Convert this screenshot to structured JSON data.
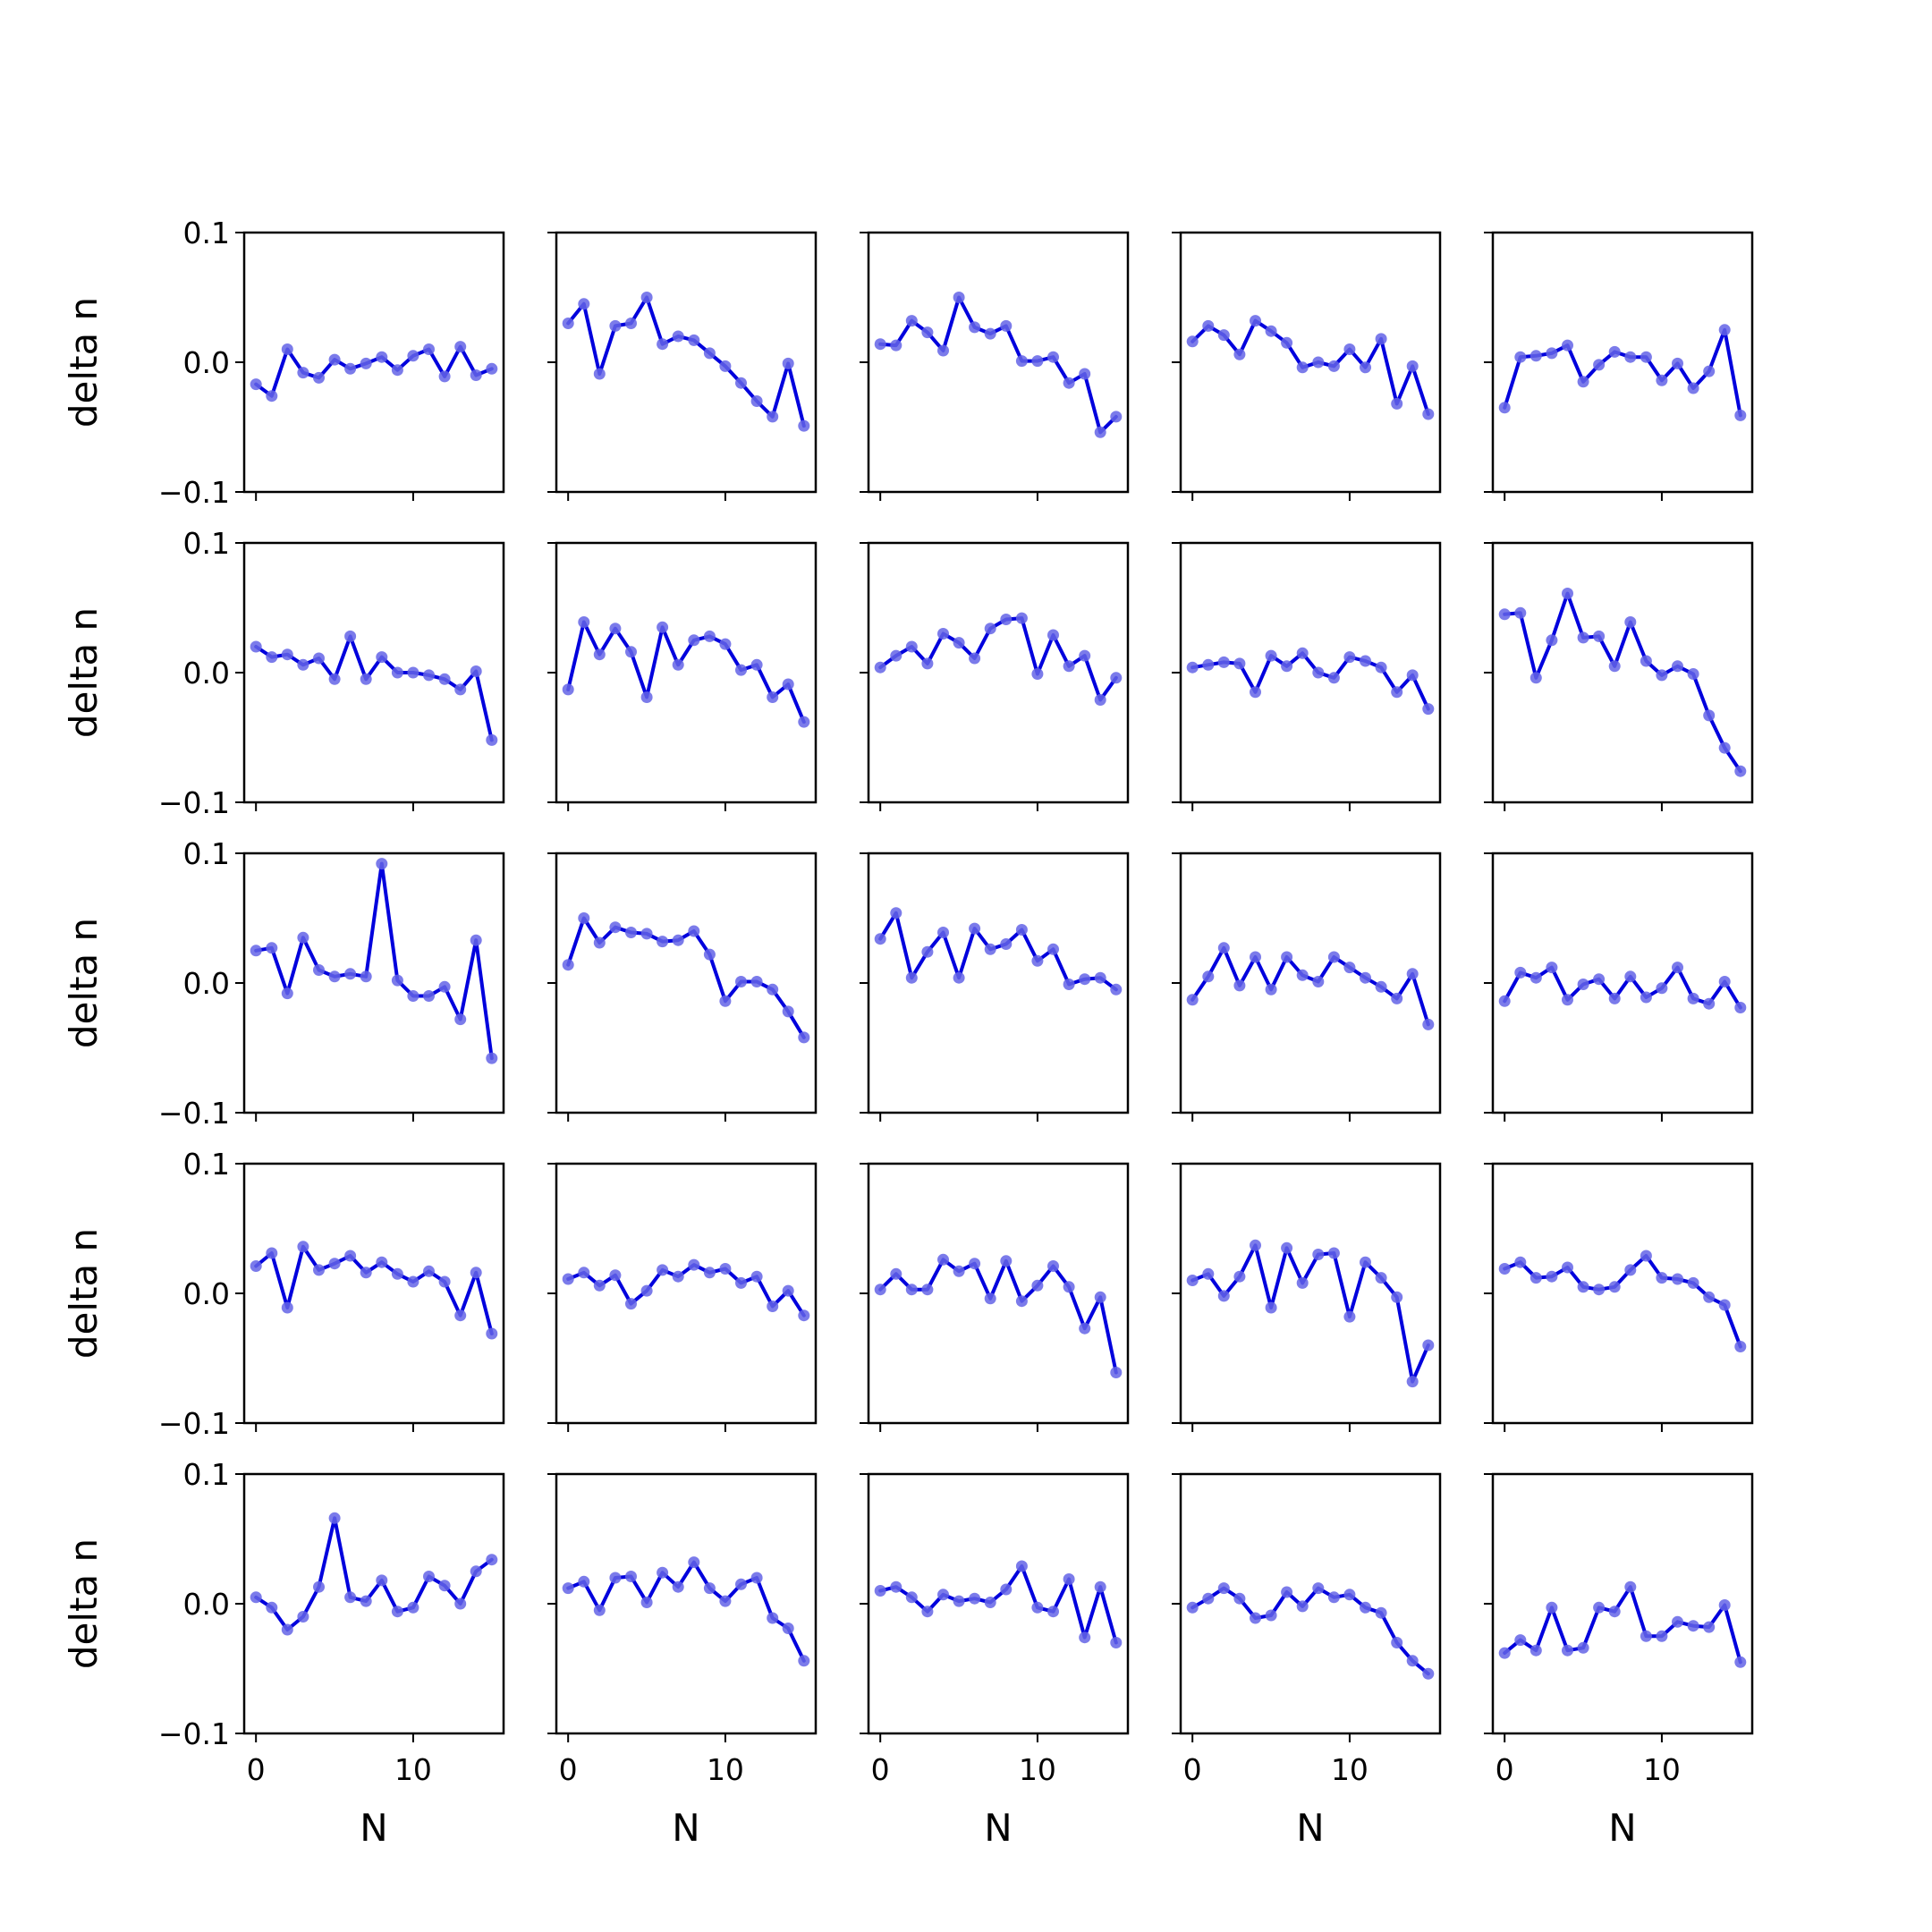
{
  "chart_data": {
    "type": "line",
    "layout": {
      "rows": 5,
      "cols": 5
    },
    "xlabel": "N",
    "ylabel": "delta n",
    "xlim": [
      -0.75,
      15.75
    ],
    "ylim": [
      -0.1,
      0.1
    ],
    "xticks": [
      0,
      10
    ],
    "yticks": [
      -0.1,
      0.0,
      0.1
    ],
    "ytick_labels": [
      "−0.1",
      "0.0",
      "0.1"
    ],
    "x": [
      0,
      1,
      2,
      3,
      4,
      5,
      6,
      7,
      8,
      9,
      10,
      11,
      12,
      13,
      14,
      15
    ],
    "line_color": "#0000dd",
    "marker_color": "#6464e6",
    "series": [
      {
        "values": [
          -0.017,
          -0.026,
          0.01,
          -0.008,
          -0.012,
          0.002,
          -0.005,
          -0.001,
          0.004,
          -0.006,
          0.005,
          0.01,
          -0.011,
          0.012,
          -0.01,
          -0.005
        ]
      },
      {
        "values": [
          0.03,
          0.045,
          -0.009,
          0.028,
          0.03,
          0.05,
          0.014,
          0.02,
          0.017,
          0.007,
          -0.003,
          -0.016,
          -0.03,
          -0.042,
          -0.001,
          -0.049
        ]
      },
      {
        "values": [
          0.014,
          0.013,
          0.032,
          0.023,
          0.009,
          0.05,
          0.027,
          0.022,
          0.028,
          0.001,
          0.001,
          0.004,
          -0.016,
          -0.009,
          -0.054,
          -0.042
        ]
      },
      {
        "values": [
          0.016,
          0.028,
          0.021,
          0.006,
          0.032,
          0.024,
          0.015,
          -0.004,
          0.0,
          -0.003,
          0.01,
          -0.004,
          0.018,
          -0.032,
          -0.003,
          -0.04
        ]
      },
      {
        "values": [
          -0.035,
          0.004,
          0.005,
          0.007,
          0.013,
          -0.015,
          -0.002,
          0.008,
          0.004,
          0.004,
          -0.014,
          -0.001,
          -0.02,
          -0.007,
          0.025,
          -0.041
        ]
      },
      {
        "values": [
          0.02,
          0.012,
          0.014,
          0.006,
          0.011,
          -0.005,
          0.028,
          -0.005,
          0.012,
          0.0,
          0.0,
          -0.002,
          -0.005,
          -0.013,
          0.001,
          -0.052
        ]
      },
      {
        "values": [
          -0.013,
          0.039,
          0.014,
          0.034,
          0.016,
          -0.019,
          0.035,
          0.006,
          0.025,
          0.028,
          0.022,
          0.002,
          0.006,
          -0.019,
          -0.009,
          -0.038
        ]
      },
      {
        "values": [
          0.004,
          0.013,
          0.02,
          0.007,
          0.03,
          0.023,
          0.011,
          0.034,
          0.041,
          0.042,
          -0.001,
          0.029,
          0.005,
          0.013,
          -0.021,
          -0.004
        ]
      },
      {
        "values": [
          0.004,
          0.006,
          0.008,
          0.007,
          -0.015,
          0.013,
          0.005,
          0.015,
          0.0,
          -0.004,
          0.012,
          0.009,
          0.004,
          -0.015,
          -0.002,
          -0.028
        ]
      },
      {
        "values": [
          0.045,
          0.046,
          -0.004,
          0.025,
          0.061,
          0.027,
          0.028,
          0.005,
          0.039,
          0.009,
          -0.002,
          0.005,
          -0.001,
          -0.033,
          -0.058,
          -0.076
        ]
      },
      {
        "values": [
          0.025,
          0.027,
          -0.008,
          0.035,
          0.01,
          0.005,
          0.007,
          0.005,
          0.092,
          0.002,
          -0.01,
          -0.01,
          -0.003,
          -0.028,
          0.033,
          -0.058
        ]
      },
      {
        "values": [
          0.014,
          0.05,
          0.031,
          0.043,
          0.039,
          0.038,
          0.032,
          0.033,
          0.04,
          0.022,
          -0.014,
          0.001,
          0.001,
          -0.005,
          -0.022,
          -0.042
        ]
      },
      {
        "values": [
          0.034,
          0.054,
          0.004,
          0.024,
          0.039,
          0.004,
          0.042,
          0.026,
          0.03,
          0.041,
          0.017,
          0.026,
          -0.001,
          0.003,
          0.004,
          -0.005
        ]
      },
      {
        "values": [
          -0.013,
          0.005,
          0.027,
          -0.002,
          0.02,
          -0.005,
          0.02,
          0.006,
          0.001,
          0.02,
          0.012,
          0.004,
          -0.003,
          -0.012,
          0.007,
          -0.032
        ]
      },
      {
        "values": [
          -0.014,
          0.008,
          0.004,
          0.012,
          -0.013,
          -0.001,
          0.003,
          -0.012,
          0.005,
          -0.011,
          -0.004,
          0.012,
          -0.012,
          -0.016,
          0.001,
          -0.019
        ]
      },
      {
        "values": [
          0.021,
          0.031,
          -0.011,
          0.036,
          0.018,
          0.023,
          0.029,
          0.016,
          0.024,
          0.015,
          0.009,
          0.017,
          0.009,
          -0.017,
          0.016,
          -0.031
        ]
      },
      {
        "values": [
          0.011,
          0.016,
          0.006,
          0.014,
          -0.008,
          0.002,
          0.018,
          0.013,
          0.022,
          0.016,
          0.019,
          0.008,
          0.013,
          -0.01,
          0.002,
          -0.017
        ]
      },
      {
        "values": [
          0.003,
          0.015,
          0.003,
          0.003,
          0.026,
          0.017,
          0.023,
          -0.004,
          0.025,
          -0.006,
          0.006,
          0.021,
          0.005,
          -0.027,
          -0.003,
          -0.061
        ]
      },
      {
        "values": [
          0.01,
          0.015,
          -0.002,
          0.013,
          0.037,
          -0.011,
          0.035,
          0.008,
          0.03,
          0.031,
          -0.018,
          0.024,
          0.012,
          -0.003,
          -0.068,
          -0.04
        ]
      },
      {
        "values": [
          0.019,
          0.024,
          0.012,
          0.013,
          0.02,
          0.005,
          0.003,
          0.005,
          0.018,
          0.029,
          0.012,
          0.011,
          0.008,
          -0.003,
          -0.009,
          -0.041
        ]
      },
      {
        "values": [
          0.005,
          -0.003,
          -0.02,
          -0.01,
          0.013,
          0.066,
          0.005,
          0.002,
          0.018,
          -0.006,
          -0.003,
          0.021,
          0.014,
          0.0,
          0.025,
          0.034
        ]
      },
      {
        "values": [
          0.012,
          0.017,
          -0.005,
          0.02,
          0.021,
          0.001,
          0.024,
          0.013,
          0.032,
          0.012,
          0.002,
          0.015,
          0.02,
          -0.011,
          -0.019,
          -0.044
        ]
      },
      {
        "values": [
          0.01,
          0.013,
          0.005,
          -0.006,
          0.007,
          0.002,
          0.004,
          0.001,
          0.011,
          0.029,
          -0.003,
          -0.006,
          0.019,
          -0.026,
          0.013,
          -0.03
        ]
      },
      {
        "values": [
          -0.003,
          0.004,
          0.012,
          0.004,
          -0.011,
          -0.009,
          0.009,
          -0.002,
          0.012,
          0.005,
          0.007,
          -0.003,
          -0.007,
          -0.03,
          -0.044,
          -0.054
        ]
      },
      {
        "values": [
          -0.038,
          -0.028,
          -0.036,
          -0.003,
          -0.036,
          -0.034,
          -0.003,
          -0.006,
          0.013,
          -0.025,
          -0.025,
          -0.014,
          -0.017,
          -0.018,
          -0.001,
          -0.045
        ]
      }
    ]
  }
}
